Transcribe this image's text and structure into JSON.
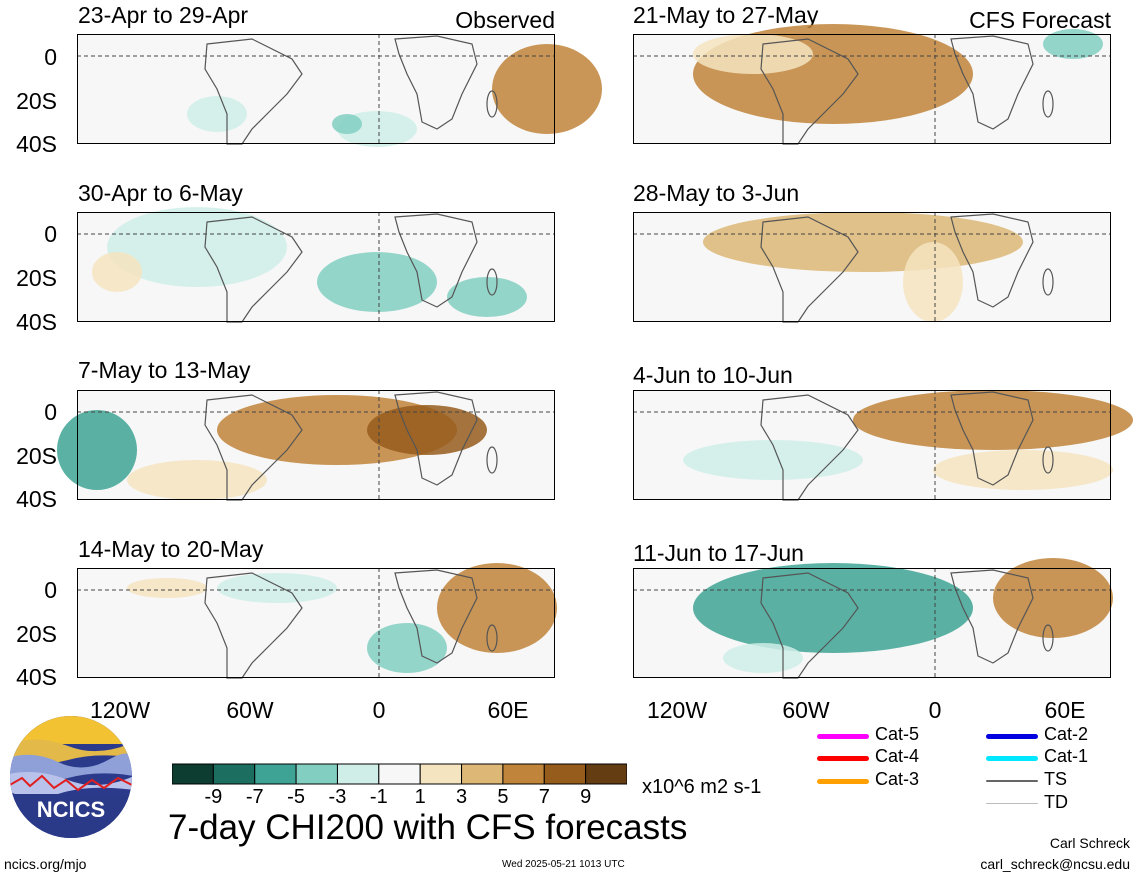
{
  "panels": {
    "observed": [
      {
        "title": "23-Apr to 29-Apr",
        "label": "Observed"
      },
      {
        "title": "30-Apr to 6-May",
        "label": ""
      },
      {
        "title": "7-May to 13-May",
        "label": ""
      },
      {
        "title": "14-May to 20-May",
        "label": ""
      }
    ],
    "forecast": [
      {
        "title": "21-May to 27-May",
        "label": "CFS Forecast"
      },
      {
        "title": "28-May to 3-Jun",
        "label": ""
      },
      {
        "title": "4-Jun to 10-Jun",
        "label": ""
      },
      {
        "title": "11-Jun to 17-Jun",
        "label": ""
      }
    ]
  },
  "axes": {
    "y_ticks": [
      "0",
      "20S",
      "40S"
    ],
    "x_ticks": [
      "120W",
      "60W",
      "0",
      "60E"
    ]
  },
  "colorbar": {
    "labels": [
      "-9",
      "-7",
      "-5",
      "-3",
      "-1",
      "1",
      "3",
      "5",
      "7",
      "9"
    ],
    "colors": [
      "#0d3d31",
      "#1b6e60",
      "#3ea394",
      "#82cfc2",
      "#cfeee7",
      "#f7f7f7",
      "#f4e4bf",
      "#dcb776",
      "#c0843a",
      "#965c1c",
      "#643d13"
    ],
    "units": "x10^6 m2 s-1"
  },
  "storm_legend": [
    {
      "label": "Cat-5",
      "color": "#ff00ff"
    },
    {
      "label": "Cat-4",
      "color": "#ff0000"
    },
    {
      "label": "Cat-3",
      "color": "#ffa000"
    },
    {
      "label": "Cat-2",
      "color": "#0000e0"
    },
    {
      "label": "Cat-1",
      "color": "#00e8ff"
    },
    {
      "label": "TS",
      "color": "#666666"
    },
    {
      "label": "TD",
      "color": "#bbbbbb"
    }
  ],
  "logo": {
    "text": "NCICS"
  },
  "footer": {
    "title": "7-day CHI200 with CFS forecasts",
    "url": "ncics.org/mjo",
    "timestamp": "Wed 2025-05-21 1013 UTC",
    "author": "Carl Schreck",
    "email": "carl_schreck@ncsu.edu"
  }
}
